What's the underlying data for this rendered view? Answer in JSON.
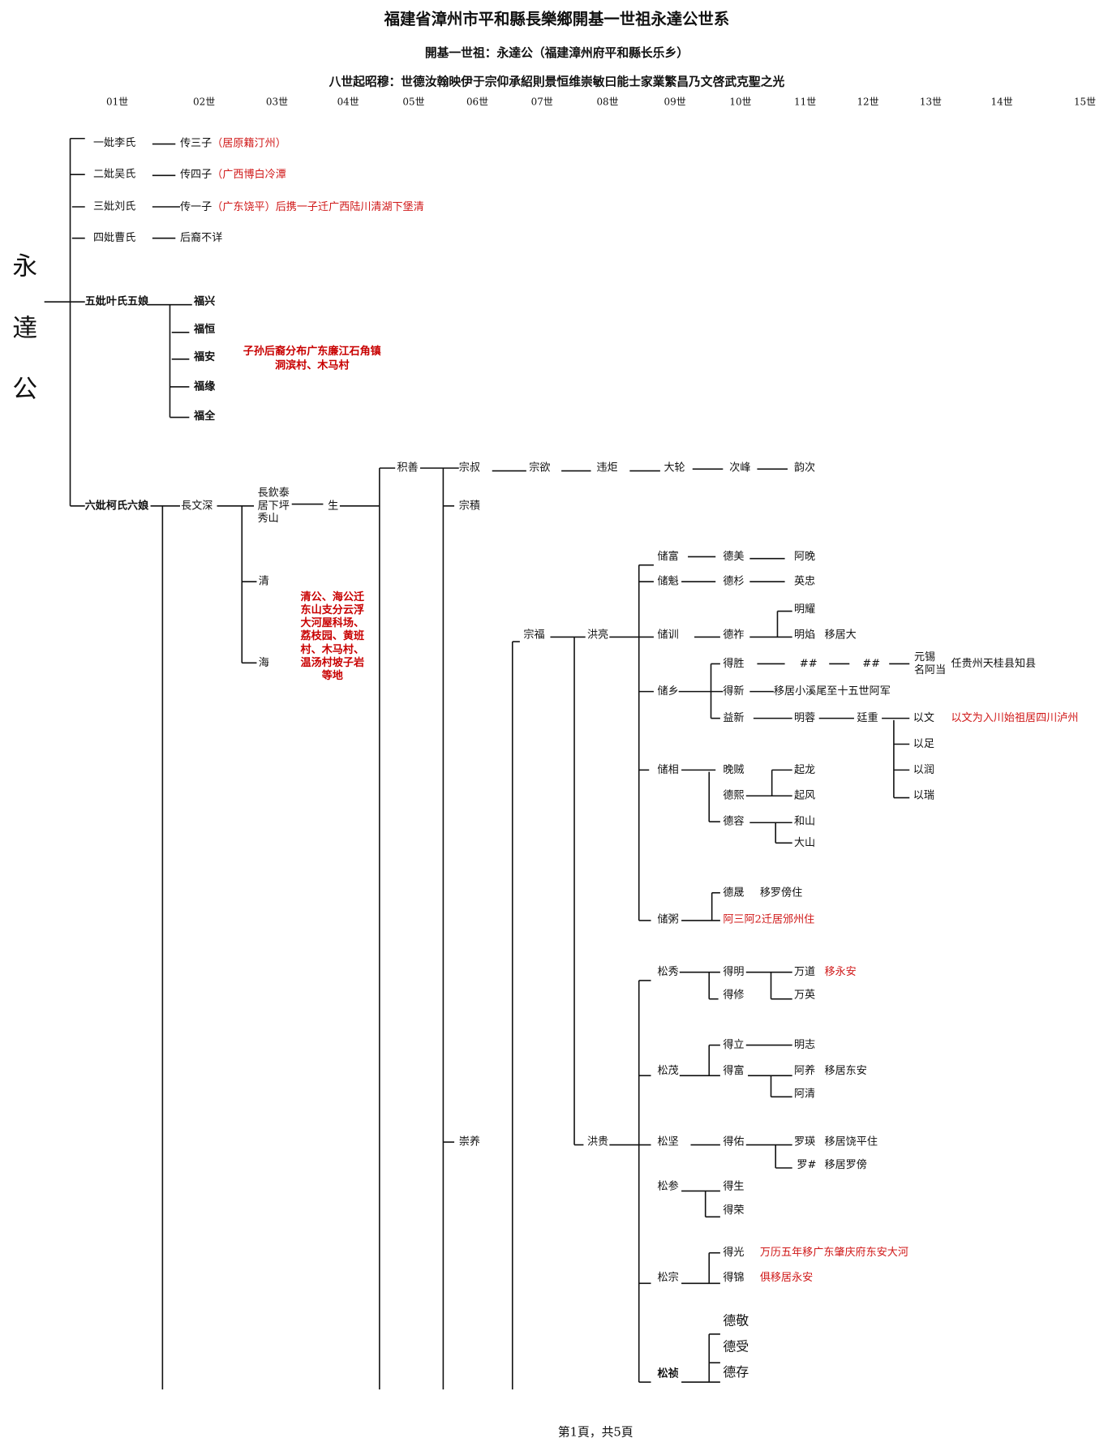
{
  "header": {
    "title": "福建省漳州市平和縣長樂鄉開基一世祖永達公世系",
    "subtitle": "開基一世祖：永達公（福建漳州府平和縣长乐乡）",
    "zhaomu": "八世起昭穆：世德汝翰映伊于宗仰承紹則景恒维崇敏曰能士家業繁昌乃文啓武克聖之光"
  },
  "generations": [
    "01世",
    "02世",
    "03世",
    "04世",
    "05世",
    "06世",
    "07世",
    "08世",
    "09世",
    "10世",
    "11世",
    "12世",
    "13世",
    "14世",
    "15世"
  ],
  "ancestor": [
    "永",
    "達",
    "公"
  ],
  "wives": [
    {
      "name": "一妣李氏",
      "issue": "传三子",
      "note": "（居原籍汀州）"
    },
    {
      "name": "二妣吴氏",
      "issue": "传四子",
      "note": "（广西博白冷潭"
    },
    {
      "name": "三妣刘氏",
      "issue": "传一子",
      "note": "（广东饶平）后携一子迁广西陆川清湖下堡清"
    },
    {
      "name": "四妣曹氏",
      "issue": "后裔不详",
      "note": ""
    }
  ],
  "wife5": {
    "name": "五妣叶氏五娘",
    "sons": [
      "福兴",
      "福恒",
      "福安",
      "福缘",
      "福全"
    ],
    "note": [
      "子孙后裔分布广东廉江石角镇",
      "洞滨村、木马村"
    ]
  },
  "wife6": {
    "name": "六妣柯氏六娘",
    "son": "長文深",
    "grandsons": [
      "長欽泰",
      "居下坪",
      "秀山",
      "清",
      "海"
    ],
    "note": [
      "清公、海公迁",
      "东山支分云浮",
      "大河屋科场、",
      "荔枝园、黄班",
      "村、木马村、",
      "温汤村坡子岩",
      "等地"
    ],
    "sheng": "生",
    "jishan": "积善",
    "zongshu_line": [
      "宗叔",
      "宗欲",
      "违炬",
      "大轮",
      "次峰",
      "韵次"
    ],
    "zongji": "宗積",
    "zongfu": "宗福",
    "chongyang": "崇养",
    "hongliang": "洪亮",
    "honggui": "洪贵"
  },
  "hongliang_branch": {
    "chufu": [
      "储富",
      "德美",
      "阿晚"
    ],
    "chukui": [
      "储魁",
      "德杉",
      "英忠"
    ],
    "chuxun": {
      "name": "储训",
      "son": "德祚",
      "grandsons": [
        "明耀",
        "明焰"
      ],
      "note": "移居大"
    },
    "chuxiang": {
      "name": "储乡",
      "desheng": [
        "得胜",
        "##",
        "##"
      ],
      "yuanxi": [
        "元锡",
        "名阿当"
      ],
      "yuanxi_note": "任贵州天桂县知县",
      "dexin": "得新",
      "dexin_note": "移居小溪尾至十五世阿军",
      "yixin": [
        "益新",
        "明蓉",
        "廷重"
      ],
      "yi": [
        "以文",
        "以足",
        "以润",
        "以瑞"
      ],
      "yiwen_note": "以文为入川始祖居四川泸州"
    },
    "chuxiang2": {
      "name": "储相",
      "sons": [
        "晚贼",
        "德熙",
        "德容"
      ],
      "qi": [
        "起龙",
        "起风"
      ],
      "shan": [
        "和山",
        "大山"
      ]
    },
    "chuzhou": {
      "name": "储粥",
      "desheng": "德晟",
      "desheng_note": "移罗傍住",
      "note": "阿三阿2迁居邠州住"
    }
  },
  "honggui_branch": {
    "songxiu": {
      "name": "松秀",
      "sons": [
        "得明",
        "得修"
      ],
      "grandsons": [
        "万道",
        "万英"
      ],
      "note": "移永安"
    },
    "songmao": {
      "name": "松茂",
      "sons": [
        "得立",
        "得富"
      ],
      "mingzhi": "明志",
      "grandsons": [
        "阿养",
        "阿清"
      ],
      "note": "移居东安"
    },
    "songjian": {
      "name": "松坚",
      "son": "得佑",
      "grandsons": [
        "罗瑛",
        "罗#"
      ],
      "notes": [
        "移居饶平住",
        "移居罗傍"
      ]
    },
    "songcan": {
      "name": "松参",
      "sons": [
        "得生",
        "得荣"
      ]
    },
    "songzong": {
      "name": "松宗",
      "sons": [
        "得光",
        "得锦"
      ],
      "notes": [
        "万历五年移广东肇庆府东安大河",
        "俱移居永安"
      ]
    },
    "songzhen": {
      "name": "松祯",
      "sons": [
        "德敬",
        "德受",
        "德存"
      ]
    }
  },
  "footer": "第1頁，共5頁",
  "colors": {
    "note_red": "#d01818",
    "line": "#111111"
  }
}
